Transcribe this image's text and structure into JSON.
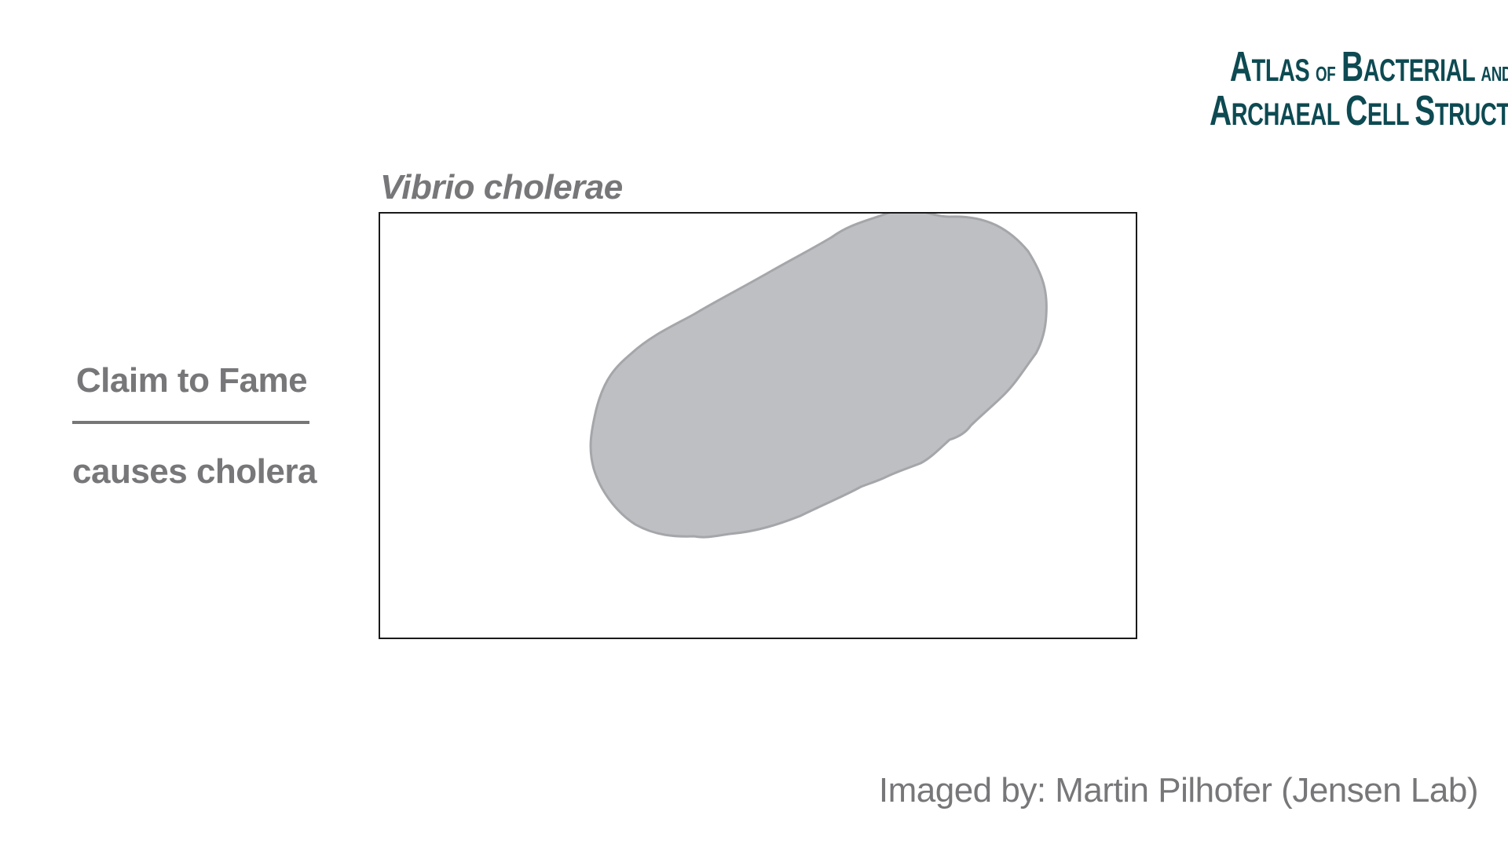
{
  "logo": {
    "line1_initial": "A",
    "line1_rest": "tlas",
    "line1_of": "of",
    "line1_b": "B",
    "line1_b_rest": "acterial",
    "line1_and": "and",
    "line2_a": "A",
    "line2_a_rest": "rchaeal",
    "line2_c": "C",
    "line2_c_rest": "ell",
    "line2_s": "S",
    "line2_s_rest": "tructure",
    "color": "#0d4a52"
  },
  "species": {
    "name": "Vibrio cholerae"
  },
  "cell": {
    "fill": "#bebfc3",
    "stroke": "#a5a6aa"
  },
  "claim": {
    "heading": "Claim to Fame",
    "text": "causes cholera"
  },
  "credit": {
    "text": "Imaged by: Martin Pilhofer (Jensen Lab)"
  },
  "colors": {
    "text_gray": "#77777a",
    "frame": "#1a1a1a"
  }
}
